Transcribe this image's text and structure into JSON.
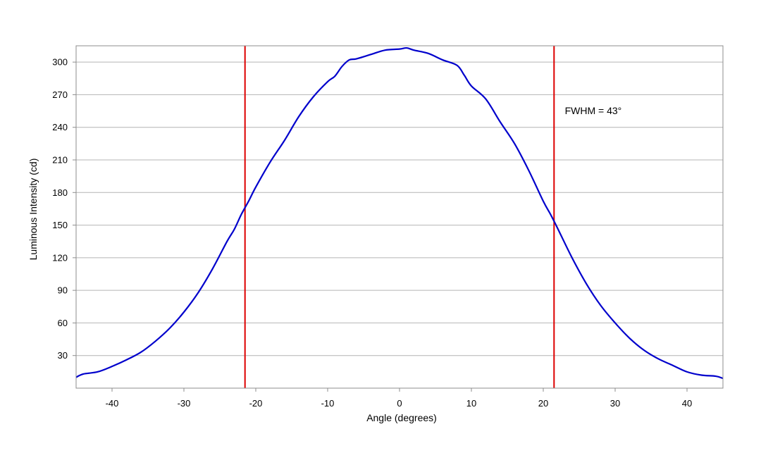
{
  "chart_data": {
    "type": "line",
    "title": "",
    "xlabel": "Angle (degrees)",
    "ylabel": "Luminous Intensity (cd)",
    "xlim": [
      -45,
      45
    ],
    "ylim": [
      0,
      315
    ],
    "xticks": [
      -40,
      -30,
      -20,
      -10,
      0,
      10,
      20,
      30,
      40
    ],
    "yticks": [
      30,
      60,
      90,
      120,
      150,
      180,
      210,
      240,
      270,
      300
    ],
    "grid": "horizontal",
    "legend": "none",
    "series": [
      {
        "color": "#0000cc",
        "x": [
          -45,
          -44,
          -42,
          -40,
          -38,
          -36,
          -34,
          -32,
          -30,
          -28,
          -26,
          -24,
          -23,
          -22,
          -21,
          -20,
          -18,
          -16,
          -14,
          -12,
          -10,
          -9,
          -8,
          -7,
          -6,
          -4,
          -2,
          0,
          1,
          2,
          4,
          6,
          8,
          9,
          10,
          12,
          14,
          16,
          18,
          20,
          21,
          22,
          24,
          26,
          28,
          30,
          32,
          34,
          36,
          38,
          40,
          42,
          44,
          45
        ],
        "y": [
          10,
          13,
          15,
          20,
          26,
          33,
          43,
          55,
          70,
          88,
          110,
          135,
          146,
          160,
          172,
          185,
          208,
          228,
          250,
          268,
          282,
          287,
          296,
          302,
          303,
          307,
          311,
          312,
          313,
          311,
          308,
          302,
          297,
          288,
          278,
          266,
          245,
          225,
          200,
          172,
          160,
          147,
          120,
          96,
          76,
          60,
          46,
          35,
          27,
          21,
          15,
          12,
          11,
          9
        ]
      }
    ],
    "vlines": [
      {
        "x": -21.5,
        "color": "#dd0000"
      },
      {
        "x": 21.5,
        "color": "#dd0000"
      }
    ],
    "annotations": [
      {
        "text": "FWHM = 43°",
        "x": 23,
        "y": 252
      }
    ],
    "colors": {
      "grid": "#b4b4b4",
      "frame": "#8c8c8c"
    }
  }
}
